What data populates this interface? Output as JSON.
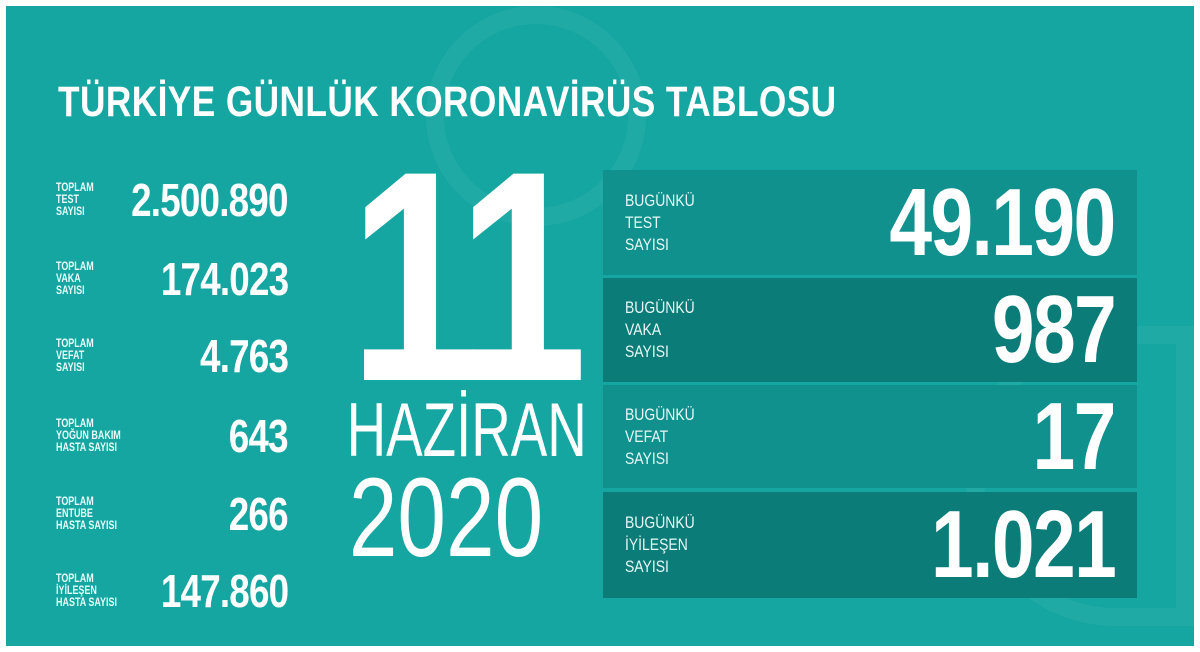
{
  "title": "TÜRKİYE GÜNLÜK KORONAVİRÜS TABLOSU",
  "colors": {
    "background": "#15a6a1",
    "row_light": "#11918d",
    "row_dark": "#0b7c78",
    "text": "#ffffff"
  },
  "totals": [
    {
      "label": "TOPLAM\nTEST\nSAYISI",
      "value": "2.500.890"
    },
    {
      "label": "TOPLAM\nVAKA\nSAYISI",
      "value": "174.023"
    },
    {
      "label": "TOPLAM\nVEFAT\nSAYISI",
      "value": "4.763"
    },
    {
      "label": "TOPLAM\nYOĞUN BAKIM\nHASTA SAYISI",
      "value": "643"
    },
    {
      "label": "TOPLAM\nENTUBE\nHASTA SAYISI",
      "value": "266"
    },
    {
      "label": "TOPLAM\nİYİLEŞEN\nHASTA SAYISI",
      "value": "147.860"
    }
  ],
  "date": {
    "day": "11",
    "month": "HAZİRAN",
    "year": "2020"
  },
  "today": [
    {
      "label": "BUGÜNKÜ\nTEST\nSAYISI",
      "value": "49.190"
    },
    {
      "label": "BUGÜNKÜ\nVAKA\nSAYISI",
      "value": "987"
    },
    {
      "label": "BUGÜNKÜ\nVEFAT\nSAYISI",
      "value": "17"
    },
    {
      "label": "BUGÜNKÜ\nİYİLEŞEN\nSAYISI",
      "value": "1.021"
    }
  ]
}
